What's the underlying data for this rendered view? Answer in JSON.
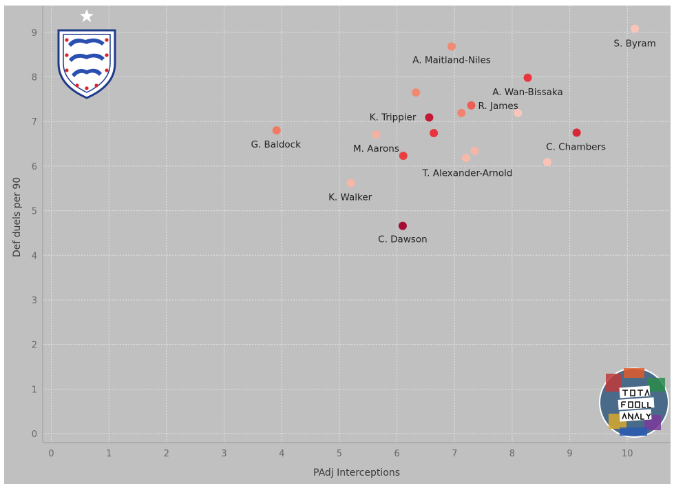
{
  "chart_data": {
    "type": "scatter",
    "xlabel": "PAdj Interceptions",
    "ylabel": "Def duels per 90",
    "xlim": [
      -0.15,
      10.75
    ],
    "ylim": [
      -0.2,
      9.6
    ],
    "x_ticks": [
      "0",
      "1",
      "2",
      "3",
      "4",
      "5",
      "6",
      "7",
      "8",
      "9",
      "10"
    ],
    "y_ticks": [
      "0",
      "1",
      "2",
      "3",
      "4",
      "5",
      "6",
      "7",
      "8",
      "9"
    ],
    "grid": true,
    "colors": {
      "background": "#c0c0c0",
      "grid": "#e4e4e4",
      "text": "#3a3a3a"
    },
    "points": [
      {
        "x": 10.13,
        "y": 9.08,
        "label": "S. Byram",
        "color": "#f8c3b8"
      },
      {
        "x": 6.95,
        "y": 8.68,
        "label": "A. Maitland-Niles",
        "color": "#f08a74"
      },
      {
        "x": 8.27,
        "y": 7.98,
        "label": "A. Wan-Bissaka",
        "color": "#e8373c"
      },
      {
        "x": 6.33,
        "y": 7.65,
        "label": "",
        "color": "#f28870"
      },
      {
        "x": 7.29,
        "y": 7.36,
        "label": "R. James",
        "color": "#ec5f55"
      },
      {
        "x": 7.12,
        "y": 7.19,
        "label": "",
        "color": "#f08470"
      },
      {
        "x": 8.1,
        "y": 7.19,
        "label": "",
        "color": "#f8c6bc"
      },
      {
        "x": 6.56,
        "y": 7.09,
        "label": "K. Trippier",
        "color": "#c01a35"
      },
      {
        "x": 3.91,
        "y": 6.8,
        "label": "G. Baldock",
        "color": "#f27a64"
      },
      {
        "x": 9.12,
        "y": 6.75,
        "label": "C. Chambers",
        "color": "#d9273a"
      },
      {
        "x": 6.64,
        "y": 6.74,
        "label": "",
        "color": "#e8373c"
      },
      {
        "x": 5.64,
        "y": 6.71,
        "label": "M. Aarons",
        "color": "#f6b0a1"
      },
      {
        "x": 7.35,
        "y": 6.34,
        "label": "",
        "color": "#f7b5a8"
      },
      {
        "x": 6.11,
        "y": 6.23,
        "label": "",
        "color": "#e8403e"
      },
      {
        "x": 7.2,
        "y": 6.18,
        "label": "T. Alexander-Arnold",
        "color": "#f7b8aa"
      },
      {
        "x": 8.61,
        "y": 6.09,
        "label": "",
        "color": "#f9c2b6"
      },
      {
        "x": 5.2,
        "y": 5.62,
        "label": "K. Walker",
        "color": "#f7b5a8"
      },
      {
        "x": 6.1,
        "y": 4.66,
        "label": "C. Dawson",
        "color": "#a50d33"
      }
    ]
  }
}
